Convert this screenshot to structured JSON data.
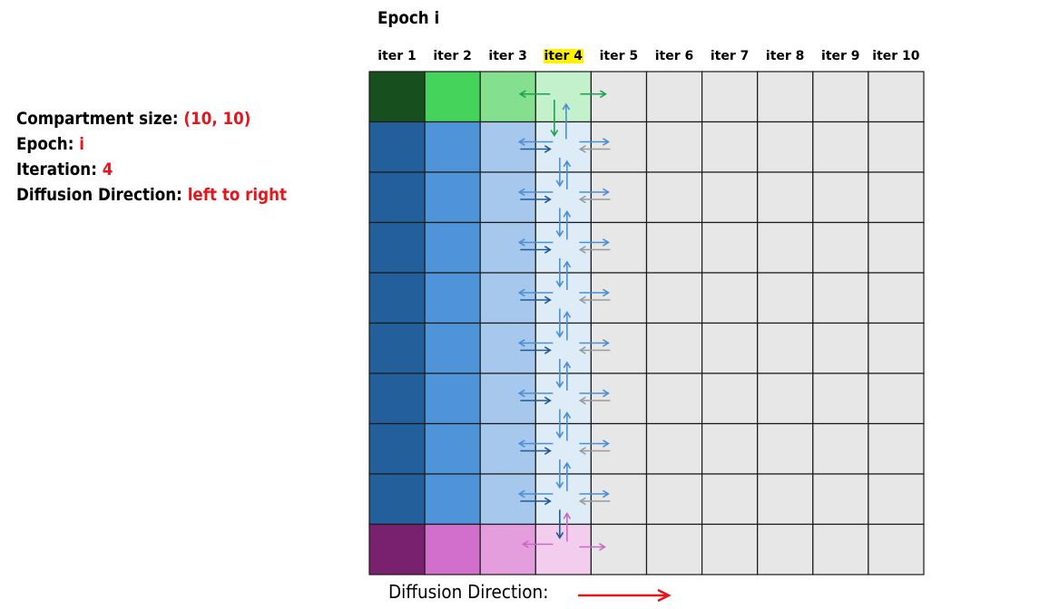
{
  "info": {
    "compartment_label": "Compartment size:",
    "compartment_value": "(10, 10)",
    "epoch_label": "Epoch:",
    "epoch_value": "i",
    "iteration_label": "Iteration:",
    "iteration_value": "4",
    "direction_label": "Diffusion Direction:",
    "direction_value": "left to right"
  },
  "epoch_title": "Epoch i",
  "columns": [
    "iter 1",
    "iter 2",
    "iter 3",
    "iter 4",
    "iter 5",
    "iter 6",
    "iter 7",
    "iter 8",
    "iter 9",
    "iter 10"
  ],
  "highlighted_column": 3,
  "grid": {
    "rows": 10,
    "cols": 10,
    "active_column": 3
  },
  "palette": {
    "green": [
      "#174f1e",
      "#45d35c",
      "#84e08e",
      "#c3f1cb"
    ],
    "blue": [
      "#225f9b",
      "#4f93d9",
      "#a5c8ec",
      "#deecf8"
    ],
    "purple": [
      "#79216e",
      "#d26ecb",
      "#e49ede",
      "#f3cdee"
    ],
    "empty": "#e7e7e7",
    "highlight": "#fff200",
    "accent_red": "#e8141b",
    "arrow_green": "#18a44c",
    "arrow_blue_light": "#4a8fd6",
    "arrow_blue_dark": "#1f5a95",
    "arrow_gray": "#9a9a9a",
    "arrow_purple": "#c86ac0"
  },
  "footer": {
    "label": "Diffusion Direction:"
  }
}
